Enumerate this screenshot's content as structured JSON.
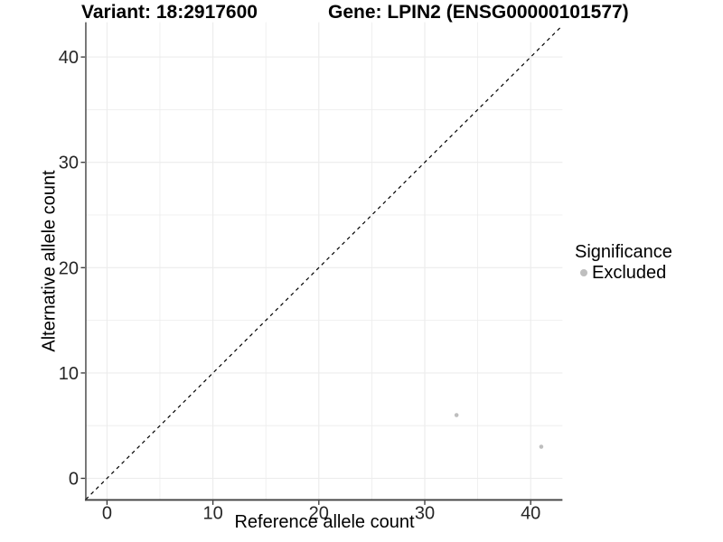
{
  "titles": {
    "variant": "Variant: 18:2917600",
    "gene": "Gene: LPIN2 (ENSG00000101577)"
  },
  "chart_data": {
    "type": "scatter",
    "title_left": "Variant: 18:2917600",
    "title_right": "Gene: LPIN2 (ENSG00000101577)",
    "xlabel": "Reference allele count",
    "ylabel": "Alternative allele count",
    "x_ticks": [
      0,
      10,
      20,
      30,
      40
    ],
    "y_ticks": [
      0,
      10,
      20,
      30,
      40
    ],
    "x_minor_ticks": [
      5,
      15,
      25,
      35
    ],
    "y_minor_ticks": [
      5,
      15,
      25,
      35
    ],
    "xlim": [
      -2,
      43
    ],
    "ylim": [
      -2.05,
      43.3
    ],
    "grid": true,
    "series": [
      {
        "name": "Excluded",
        "color": "#bebebe",
        "points": [
          {
            "x": 33,
            "y": 6
          },
          {
            "x": 41,
            "y": 3
          }
        ]
      }
    ],
    "identity_line": {
      "type": "dashed",
      "color": "#000000",
      "from": [
        -2,
        -2
      ],
      "to": [
        43,
        43
      ]
    },
    "legend": {
      "position": "right",
      "title": "Significance",
      "items": [
        {
          "label": "Excluded",
          "color": "#bebebe"
        }
      ]
    },
    "colors": {
      "grid": "#ececec",
      "axis_line": "#404040",
      "tick_mark": "#333333",
      "tick_label": "#262626",
      "point": "#bebebe"
    }
  }
}
